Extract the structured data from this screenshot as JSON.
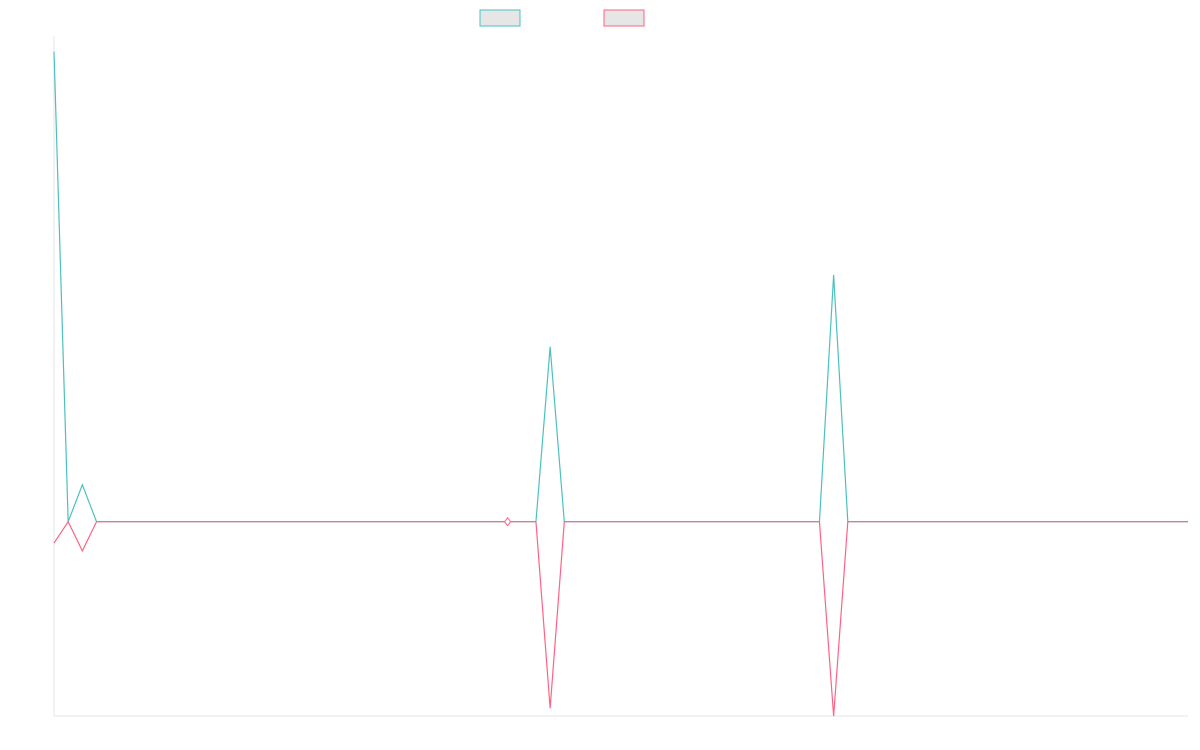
{
  "chart_data": {
    "type": "line",
    "x_count": 80,
    "ylim": [
      -100,
      250
    ],
    "xlabel": "",
    "ylabel": "",
    "grid": false,
    "legend": "top-center",
    "series": [
      {
        "color": "#4bc0c0",
        "legend_fill": "#e6e6e6",
        "points": [
          {
            "x": 0,
            "y": 242
          },
          {
            "x": 1,
            "y": 0
          },
          {
            "x": 2,
            "y": 19
          },
          {
            "x": 3,
            "y": 0
          },
          {
            "x": 33,
            "y": 0
          },
          {
            "x": 34,
            "y": 0
          },
          {
            "x": 35,
            "y": 90
          },
          {
            "x": 36,
            "y": 0
          },
          {
            "x": 54,
            "y": 0
          },
          {
            "x": 55,
            "y": 127
          },
          {
            "x": 56,
            "y": 0
          },
          {
            "x": 80,
            "y": 0
          }
        ]
      },
      {
        "color": "#ff6384",
        "legend_fill": "#e6e6e6",
        "points": [
          {
            "x": 0,
            "y": -11
          },
          {
            "x": 1,
            "y": 0
          },
          {
            "x": 2,
            "y": -15
          },
          {
            "x": 3,
            "y": 0
          },
          {
            "x": 33,
            "y": 0
          },
          {
            "x": 34,
            "y": 0
          },
          {
            "x": 35,
            "y": -96
          },
          {
            "x": 36,
            "y": 0
          },
          {
            "x": 54,
            "y": 0
          },
          {
            "x": 55,
            "y": -100
          },
          {
            "x": 56,
            "y": 0
          },
          {
            "x": 80,
            "y": 0
          }
        ]
      }
    ],
    "markers": [
      {
        "series": 1,
        "x": 32,
        "y": 0,
        "shape": "diamond"
      }
    ]
  }
}
